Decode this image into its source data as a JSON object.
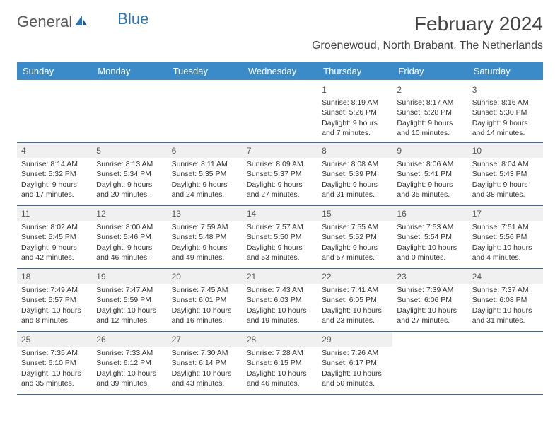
{
  "logo": {
    "text1": "General",
    "text2": "Blue"
  },
  "title": "February 2024",
  "location": "Groenewoud, North Brabant, The Netherlands",
  "weekdays": [
    "Sunday",
    "Monday",
    "Tuesday",
    "Wednesday",
    "Thursday",
    "Friday",
    "Saturday"
  ],
  "colors": {
    "header_bg": "#3b8bc9",
    "header_text": "#ffffff",
    "shaded_bg": "#f0f0f0",
    "rule": "#3b6a9a",
    "logo_gray": "#5a5a5a",
    "logo_blue": "#2e75b6"
  },
  "weeks": [
    [
      {
        "empty": true
      },
      {
        "empty": true
      },
      {
        "empty": true
      },
      {
        "empty": true
      },
      {
        "n": "1",
        "sr": "Sunrise: 8:19 AM",
        "ss": "Sunset: 5:26 PM",
        "dl": "Daylight: 9 hours and 7 minutes."
      },
      {
        "n": "2",
        "sr": "Sunrise: 8:17 AM",
        "ss": "Sunset: 5:28 PM",
        "dl": "Daylight: 9 hours and 10 minutes."
      },
      {
        "n": "3",
        "sr": "Sunrise: 8:16 AM",
        "ss": "Sunset: 5:30 PM",
        "dl": "Daylight: 9 hours and 14 minutes."
      }
    ],
    [
      {
        "n": "4",
        "sr": "Sunrise: 8:14 AM",
        "ss": "Sunset: 5:32 PM",
        "dl": "Daylight: 9 hours and 17 minutes."
      },
      {
        "n": "5",
        "sr": "Sunrise: 8:13 AM",
        "ss": "Sunset: 5:34 PM",
        "dl": "Daylight: 9 hours and 20 minutes."
      },
      {
        "n": "6",
        "sr": "Sunrise: 8:11 AM",
        "ss": "Sunset: 5:35 PM",
        "dl": "Daylight: 9 hours and 24 minutes."
      },
      {
        "n": "7",
        "sr": "Sunrise: 8:09 AM",
        "ss": "Sunset: 5:37 PM",
        "dl": "Daylight: 9 hours and 27 minutes."
      },
      {
        "n": "8",
        "sr": "Sunrise: 8:08 AM",
        "ss": "Sunset: 5:39 PM",
        "dl": "Daylight: 9 hours and 31 minutes."
      },
      {
        "n": "9",
        "sr": "Sunrise: 8:06 AM",
        "ss": "Sunset: 5:41 PM",
        "dl": "Daylight: 9 hours and 35 minutes."
      },
      {
        "n": "10",
        "sr": "Sunrise: 8:04 AM",
        "ss": "Sunset: 5:43 PM",
        "dl": "Daylight: 9 hours and 38 minutes."
      }
    ],
    [
      {
        "n": "11",
        "sr": "Sunrise: 8:02 AM",
        "ss": "Sunset: 5:45 PM",
        "dl": "Daylight: 9 hours and 42 minutes."
      },
      {
        "n": "12",
        "sr": "Sunrise: 8:00 AM",
        "ss": "Sunset: 5:46 PM",
        "dl": "Daylight: 9 hours and 46 minutes."
      },
      {
        "n": "13",
        "sr": "Sunrise: 7:59 AM",
        "ss": "Sunset: 5:48 PM",
        "dl": "Daylight: 9 hours and 49 minutes."
      },
      {
        "n": "14",
        "sr": "Sunrise: 7:57 AM",
        "ss": "Sunset: 5:50 PM",
        "dl": "Daylight: 9 hours and 53 minutes."
      },
      {
        "n": "15",
        "sr": "Sunrise: 7:55 AM",
        "ss": "Sunset: 5:52 PM",
        "dl": "Daylight: 9 hours and 57 minutes."
      },
      {
        "n": "16",
        "sr": "Sunrise: 7:53 AM",
        "ss": "Sunset: 5:54 PM",
        "dl": "Daylight: 10 hours and 0 minutes."
      },
      {
        "n": "17",
        "sr": "Sunrise: 7:51 AM",
        "ss": "Sunset: 5:56 PM",
        "dl": "Daylight: 10 hours and 4 minutes."
      }
    ],
    [
      {
        "n": "18",
        "sr": "Sunrise: 7:49 AM",
        "ss": "Sunset: 5:57 PM",
        "dl": "Daylight: 10 hours and 8 minutes."
      },
      {
        "n": "19",
        "sr": "Sunrise: 7:47 AM",
        "ss": "Sunset: 5:59 PM",
        "dl": "Daylight: 10 hours and 12 minutes."
      },
      {
        "n": "20",
        "sr": "Sunrise: 7:45 AM",
        "ss": "Sunset: 6:01 PM",
        "dl": "Daylight: 10 hours and 16 minutes."
      },
      {
        "n": "21",
        "sr": "Sunrise: 7:43 AM",
        "ss": "Sunset: 6:03 PM",
        "dl": "Daylight: 10 hours and 19 minutes."
      },
      {
        "n": "22",
        "sr": "Sunrise: 7:41 AM",
        "ss": "Sunset: 6:05 PM",
        "dl": "Daylight: 10 hours and 23 minutes."
      },
      {
        "n": "23",
        "sr": "Sunrise: 7:39 AM",
        "ss": "Sunset: 6:06 PM",
        "dl": "Daylight: 10 hours and 27 minutes."
      },
      {
        "n": "24",
        "sr": "Sunrise: 7:37 AM",
        "ss": "Sunset: 6:08 PM",
        "dl": "Daylight: 10 hours and 31 minutes."
      }
    ],
    [
      {
        "n": "25",
        "sr": "Sunrise: 7:35 AM",
        "ss": "Sunset: 6:10 PM",
        "dl": "Daylight: 10 hours and 35 minutes."
      },
      {
        "n": "26",
        "sr": "Sunrise: 7:33 AM",
        "ss": "Sunset: 6:12 PM",
        "dl": "Daylight: 10 hours and 39 minutes."
      },
      {
        "n": "27",
        "sr": "Sunrise: 7:30 AM",
        "ss": "Sunset: 6:14 PM",
        "dl": "Daylight: 10 hours and 43 minutes."
      },
      {
        "n": "28",
        "sr": "Sunrise: 7:28 AM",
        "ss": "Sunset: 6:15 PM",
        "dl": "Daylight: 10 hours and 46 minutes."
      },
      {
        "n": "29",
        "sr": "Sunrise: 7:26 AM",
        "ss": "Sunset: 6:17 PM",
        "dl": "Daylight: 10 hours and 50 minutes."
      },
      {
        "empty": true
      },
      {
        "empty": true
      }
    ]
  ]
}
